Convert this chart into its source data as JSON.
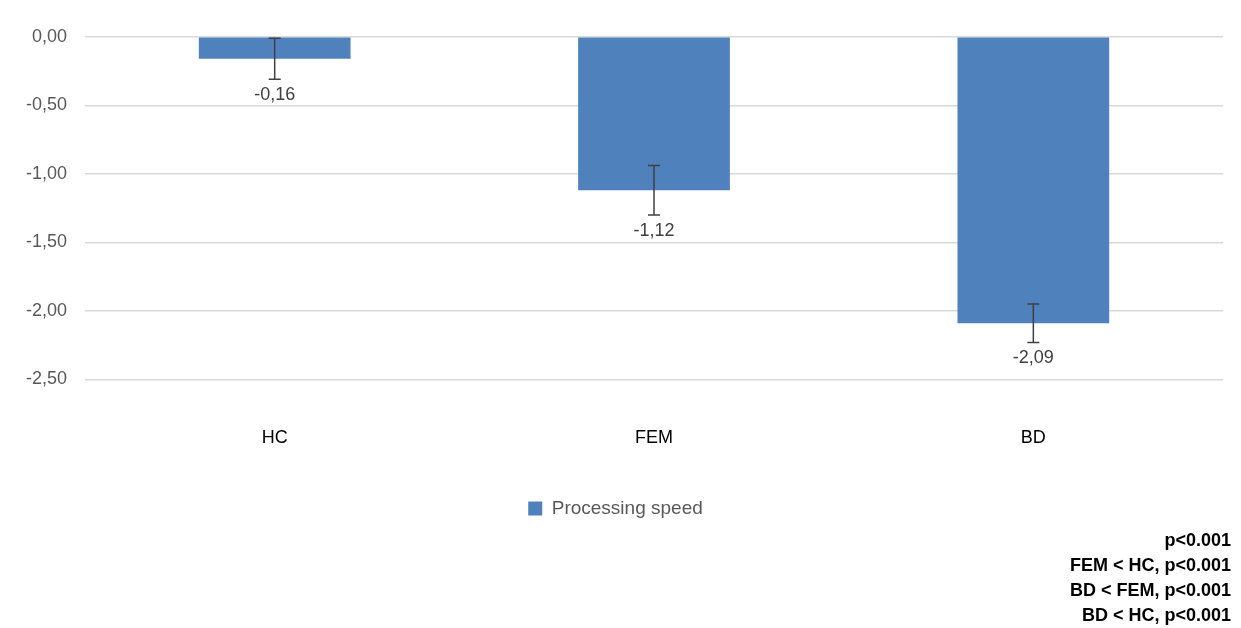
{
  "chart_data": {
    "type": "bar",
    "categories": [
      "HC",
      "FEM",
      "BD"
    ],
    "series": [
      {
        "name": "Processing speed",
        "color": "#4f81bd",
        "values": [
          -0.16,
          -1.12,
          -2.09
        ],
        "errors": [
          0.15,
          0.18,
          0.14
        ],
        "value_labels": [
          "-0,16",
          "-1,12",
          "-2,09"
        ]
      }
    ],
    "ylim": [
      -2.5,
      0
    ],
    "yticks": [
      {
        "value": 0,
        "label": "0,00"
      },
      {
        "value": -0.5,
        "label": "-0,50"
      },
      {
        "value": -1,
        "label": "-1,00"
      },
      {
        "value": -1.5,
        "label": "-1,50"
      },
      {
        "value": -2,
        "label": "-2,00"
      },
      {
        "value": -2.5,
        "label": "-2,50"
      }
    ],
    "grid": "y",
    "legend": "bottom",
    "annotations": [
      "p<0.001",
      "FEM < HC, p<0.001",
      "BD < FEM, p<0.001",
      "BD < HC, p<0.001"
    ]
  }
}
